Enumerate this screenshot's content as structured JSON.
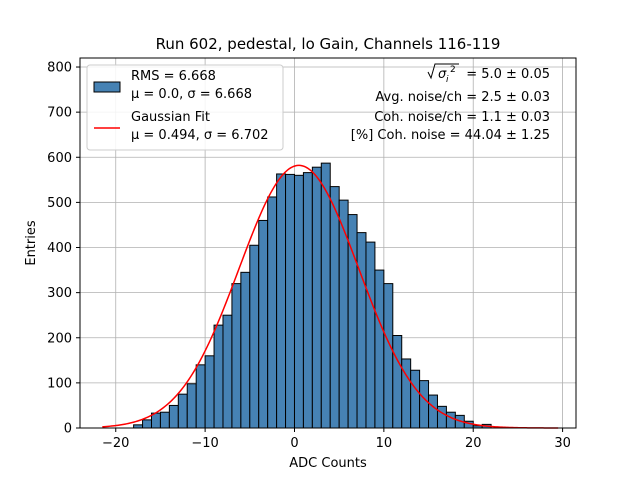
{
  "chart_data": {
    "type": "bar",
    "title": "Run 602, pedestal, lo Gain, Channels 116-119",
    "xlabel": "ADC Counts",
    "ylabel": "Entries",
    "xlim": [
      -24,
      31.5
    ],
    "ylim": [
      0,
      820
    ],
    "xticks": [
      -20,
      -10,
      0,
      10,
      20,
      30
    ],
    "yticks": [
      0,
      100,
      200,
      300,
      400,
      500,
      600,
      700,
      800
    ],
    "grid": true,
    "bin_width": 1,
    "bin_left_edges": [
      -18,
      -17,
      -16,
      -15,
      -14,
      -13,
      -12,
      -11,
      -10,
      -9,
      -8,
      -7,
      -6,
      -5,
      -4,
      -3,
      -2,
      -1,
      0,
      1,
      2,
      3,
      4,
      5,
      6,
      7,
      8,
      9,
      10,
      11,
      12,
      13,
      14,
      15,
      16,
      17,
      18,
      19,
      20,
      21
    ],
    "values": [
      7,
      18,
      33,
      35,
      50,
      75,
      98,
      140,
      160,
      228,
      250,
      320,
      345,
      405,
      460,
      512,
      563,
      562,
      560,
      566,
      578,
      587,
      535,
      505,
      473,
      433,
      412,
      350,
      320,
      205,
      153,
      128,
      105,
      73,
      48,
      35,
      28,
      15,
      5,
      8
    ],
    "series": [
      {
        "name": "RMS = 6.668",
        "sublabel": "μ = 0.0, σ = 6.668",
        "kind": "histogram",
        "color": "#4682b4"
      },
      {
        "name": "Gaussian Fit",
        "sublabel": "μ = 0.494, σ = 6.702",
        "kind": "fit",
        "color": "#ff0000",
        "mu": 0.494,
        "sigma": 6.702,
        "amplitude": 582,
        "x_range": [
          -21.5,
          29.5
        ]
      }
    ],
    "legend_position": "top-left",
    "annotations": {
      "sigma_label": " = 5.0 ± 0.05",
      "avg_noise": "Avg. noise/ch = 2.5 ± 0.03",
      "coh_noise": "Coh. noise/ch = 1.1 ± 0.03",
      "pct_coh_noise": "[%] Coh. noise = 44.04 ± 1.25"
    }
  }
}
